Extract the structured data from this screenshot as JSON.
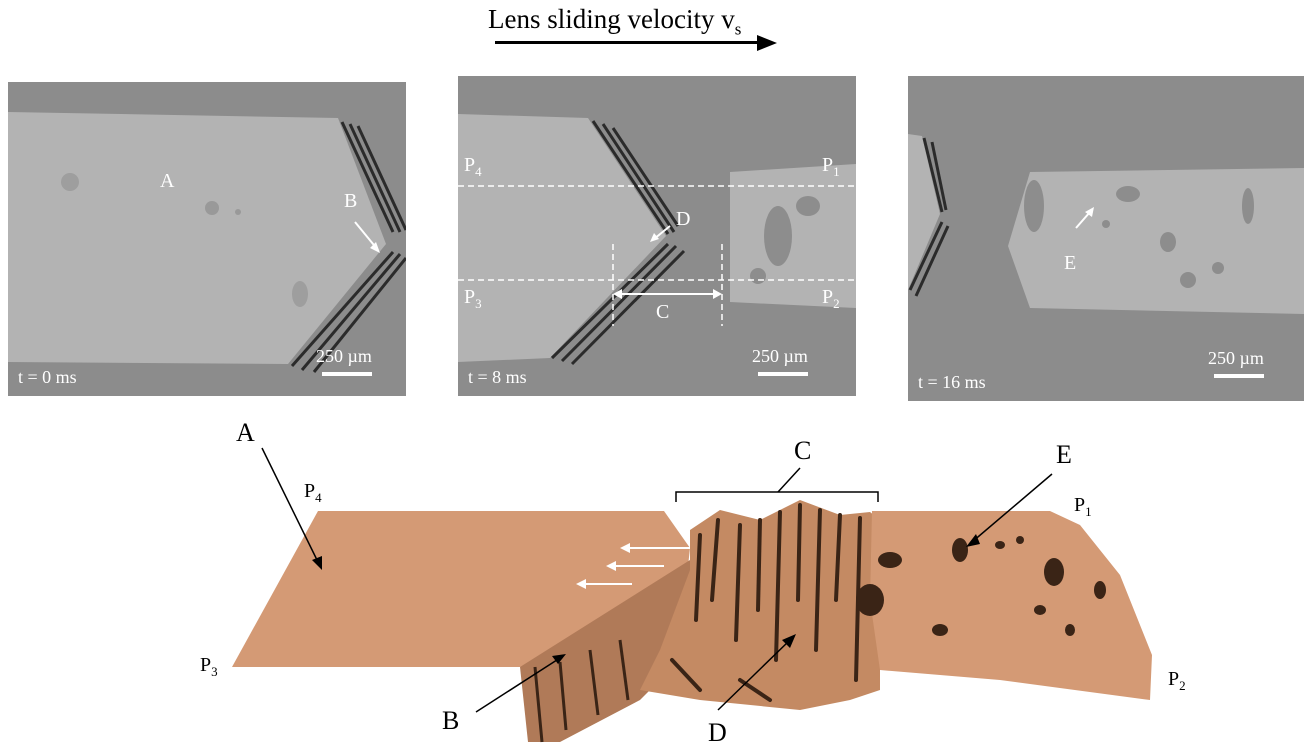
{
  "title": {
    "text": "Lens sliding velocity v",
    "sub": "s"
  },
  "frames": [
    {
      "time": "t = 0 ms",
      "scale_bar": "250 µm",
      "labels": {
        "a": "A",
        "b": "B"
      }
    },
    {
      "time": "t = 8 ms",
      "scale_bar": "250 µm",
      "labels": {
        "p4": "P",
        "p4_sub": "4",
        "p1": "P",
        "p1_sub": "1",
        "p3": "P",
        "p3_sub": "3",
        "p2": "P",
        "p2_sub": "2",
        "c": "C",
        "d": "D"
      }
    },
    {
      "time": "t = 16 ms",
      "scale_bar": "250 µm",
      "labels": {
        "e": "E"
      }
    }
  ],
  "surface": {
    "labels": {
      "a": "A",
      "b": "B",
      "c": "C",
      "d": "D",
      "e": "E",
      "p1": "P",
      "p1_sub": "1",
      "p2": "P",
      "p2_sub": "2",
      "p3": "P",
      "p3_sub": "3",
      "p4": "P",
      "p4_sub": "4"
    }
  },
  "colors": {
    "frame_gray": "#8f8f8f",
    "contact_light": "#b3b3b3",
    "surface": "#d49a75",
    "surface_dark": "#3a2416"
  }
}
